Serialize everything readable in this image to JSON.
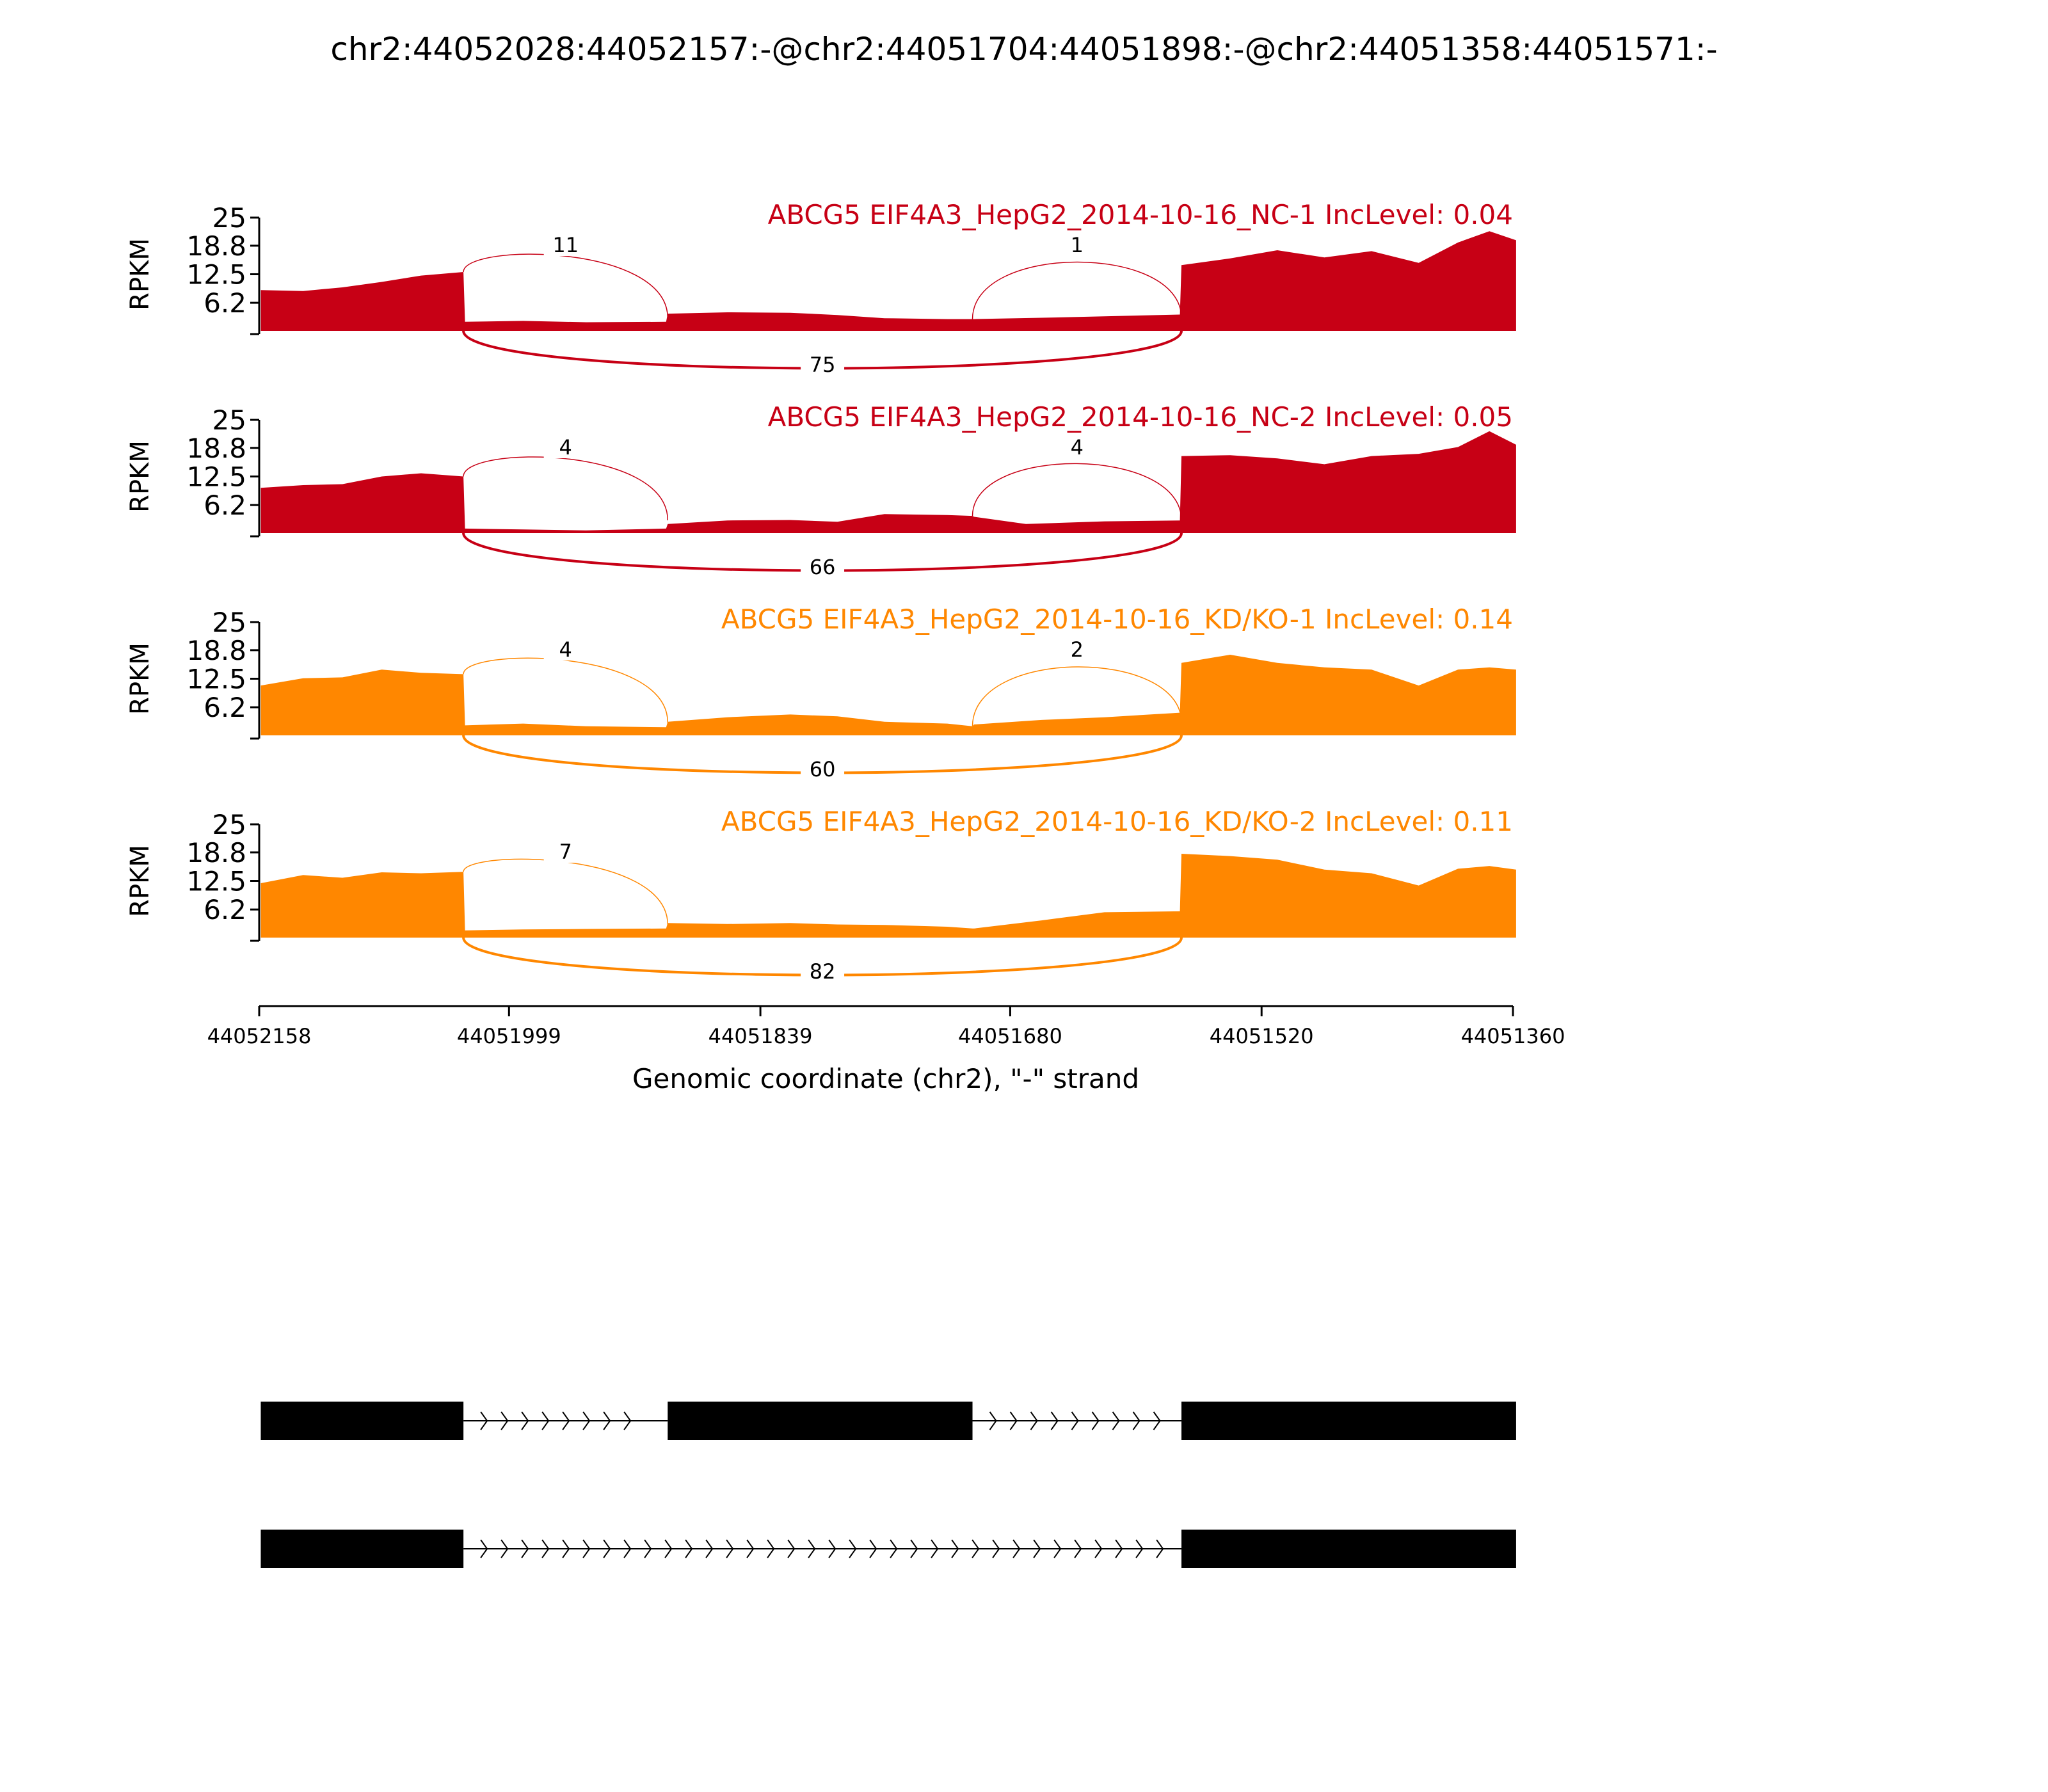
{
  "chart_data": {
    "type": "area",
    "title": "chr2:44052028:44052157:-@chr2:44051704:44051898:-@chr2:44051358:44051571:-",
    "xlabel": "Genomic coordinate (chr2), \"-\" strand",
    "ylabel": "RPKM",
    "xlim": [
      44052158,
      44051360
    ],
    "ylim": [
      0,
      25
    ],
    "x_ticks": [
      44052158,
      44051999,
      44051839,
      44051680,
      44051520,
      44051360
    ],
    "y_ticks": [
      6.2,
      12.5,
      18.8,
      25
    ],
    "exons": [
      {
        "start": 44052157,
        "end": 44052028
      },
      {
        "start": 44051898,
        "end": 44051704
      },
      {
        "start": 44051571,
        "end": 44051358
      }
    ],
    "series": [
      {
        "name": "ABCG5 EIF4A3_HepG2_2014-10-16_NC-1 IncLevel: 0.04",
        "color": "#c70015",
        "coverage": [
          [
            44052157,
            9.0
          ],
          [
            44052130,
            8.8
          ],
          [
            44052105,
            9.6
          ],
          [
            44052080,
            10.8
          ],
          [
            44052055,
            12.2
          ],
          [
            44052028,
            13.0
          ],
          [
            44052027,
            2.0
          ],
          [
            44051990,
            2.2
          ],
          [
            44051950,
            1.9
          ],
          [
            44051899,
            2.0
          ],
          [
            44051898,
            3.8
          ],
          [
            44051860,
            4.1
          ],
          [
            44051820,
            4.0
          ],
          [
            44051790,
            3.5
          ],
          [
            44051760,
            2.8
          ],
          [
            44051720,
            2.6
          ],
          [
            44051704,
            2.6
          ],
          [
            44051703,
            2.6
          ],
          [
            44051660,
            2.9
          ],
          [
            44051620,
            3.2
          ],
          [
            44051572,
            3.6
          ],
          [
            44051571,
            14.5
          ],
          [
            44051540,
            16.0
          ],
          [
            44051510,
            17.8
          ],
          [
            44051480,
            16.2
          ],
          [
            44051450,
            17.6
          ],
          [
            44051420,
            15.0
          ],
          [
            44051395,
            19.5
          ],
          [
            44051375,
            22.0
          ],
          [
            44051358,
            20.0
          ]
        ],
        "junctions": [
          {
            "from": 44052028,
            "to": 44051898,
            "count": 11,
            "side": "above"
          },
          {
            "from": 44051704,
            "to": 44051571,
            "count": 1,
            "side": "above"
          },
          {
            "from": 44052028,
            "to": 44051571,
            "count": 75,
            "side": "below"
          }
        ]
      },
      {
        "name": "ABCG5 EIF4A3_HepG2_2014-10-16_NC-2 IncLevel: 0.05",
        "color": "#c70015",
        "coverage": [
          [
            44052157,
            10.0
          ],
          [
            44052130,
            10.6
          ],
          [
            44052105,
            10.8
          ],
          [
            44052080,
            12.5
          ],
          [
            44052055,
            13.2
          ],
          [
            44052028,
            12.5
          ],
          [
            44052027,
            1.0
          ],
          [
            44051990,
            0.8
          ],
          [
            44051950,
            0.6
          ],
          [
            44051899,
            1.0
          ],
          [
            44051898,
            2.0
          ],
          [
            44051860,
            2.8
          ],
          [
            44051820,
            2.9
          ],
          [
            44051790,
            2.5
          ],
          [
            44051760,
            4.2
          ],
          [
            44051720,
            4.0
          ],
          [
            44051704,
            3.8
          ],
          [
            44051703,
            3.6
          ],
          [
            44051670,
            2.0
          ],
          [
            44051620,
            2.6
          ],
          [
            44051572,
            2.8
          ],
          [
            44051571,
            17.0
          ],
          [
            44051540,
            17.2
          ],
          [
            44051510,
            16.5
          ],
          [
            44051480,
            15.2
          ],
          [
            44051450,
            17.0
          ],
          [
            44051420,
            17.5
          ],
          [
            44051395,
            19.0
          ],
          [
            44051375,
            22.5
          ],
          [
            44051358,
            19.5
          ]
        ],
        "junctions": [
          {
            "from": 44052028,
            "to": 44051898,
            "count": 4,
            "side": "above"
          },
          {
            "from": 44051704,
            "to": 44051571,
            "count": 4,
            "side": "above"
          },
          {
            "from": 44052028,
            "to": 44051571,
            "count": 66,
            "side": "below"
          }
        ]
      },
      {
        "name": "ABCG5 EIF4A3_HepG2_2014-10-16_KD/KO-1 IncLevel: 0.14",
        "color": "#ff8700",
        "coverage": [
          [
            44052157,
            11.0
          ],
          [
            44052130,
            12.6
          ],
          [
            44052105,
            12.8
          ],
          [
            44052080,
            14.5
          ],
          [
            44052055,
            13.8
          ],
          [
            44052028,
            13.5
          ],
          [
            44052027,
            2.2
          ],
          [
            44051990,
            2.6
          ],
          [
            44051950,
            2.0
          ],
          [
            44051899,
            1.8
          ],
          [
            44051898,
            3.0
          ],
          [
            44051860,
            4.0
          ],
          [
            44051820,
            4.6
          ],
          [
            44051790,
            4.2
          ],
          [
            44051760,
            3.0
          ],
          [
            44051720,
            2.6
          ],
          [
            44051704,
            2.0
          ],
          [
            44051703,
            2.4
          ],
          [
            44051660,
            3.4
          ],
          [
            44051620,
            4.0
          ],
          [
            44051572,
            5.0
          ],
          [
            44051571,
            16.0
          ],
          [
            44051540,
            17.8
          ],
          [
            44051510,
            16.0
          ],
          [
            44051480,
            15.0
          ],
          [
            44051450,
            14.5
          ],
          [
            44051420,
            11.0
          ],
          [
            44051395,
            14.5
          ],
          [
            44051375,
            15.0
          ],
          [
            44051358,
            14.5
          ]
        ],
        "junctions": [
          {
            "from": 44052028,
            "to": 44051898,
            "count": 4,
            "side": "above"
          },
          {
            "from": 44051704,
            "to": 44051571,
            "count": 2,
            "side": "above"
          },
          {
            "from": 44052028,
            "to": 44051571,
            "count": 60,
            "side": "below"
          }
        ]
      },
      {
        "name": "ABCG5 EIF4A3_HepG2_2014-10-16_KD/KO-2 IncLevel: 0.11",
        "color": "#ff8700",
        "coverage": [
          [
            44052157,
            12.0
          ],
          [
            44052130,
            13.8
          ],
          [
            44052105,
            13.2
          ],
          [
            44052080,
            14.4
          ],
          [
            44052055,
            14.2
          ],
          [
            44052028,
            14.5
          ],
          [
            44052027,
            1.6
          ],
          [
            44051990,
            1.8
          ],
          [
            44051950,
            1.9
          ],
          [
            44051899,
            2.0
          ],
          [
            44051898,
            3.2
          ],
          [
            44051860,
            3.0
          ],
          [
            44051820,
            3.2
          ],
          [
            44051790,
            2.9
          ],
          [
            44051760,
            2.8
          ],
          [
            44051720,
            2.4
          ],
          [
            44051704,
            2.0
          ],
          [
            44051703,
            2.0
          ],
          [
            44051660,
            3.8
          ],
          [
            44051620,
            5.6
          ],
          [
            44051572,
            5.8
          ],
          [
            44051571,
            18.5
          ],
          [
            44051540,
            18.0
          ],
          [
            44051510,
            17.2
          ],
          [
            44051480,
            15.0
          ],
          [
            44051450,
            14.2
          ],
          [
            44051420,
            11.5
          ],
          [
            44051395,
            15.2
          ],
          [
            44051375,
            15.8
          ],
          [
            44051358,
            15.0
          ]
        ],
        "junctions": [
          {
            "from": 44052028,
            "to": 44051898,
            "count": 7,
            "side": "above"
          },
          {
            "from": 44052028,
            "to": 44051571,
            "count": 82,
            "side": "below"
          }
        ]
      }
    ],
    "isoforms": [
      {
        "exons": [
          [
            44052157,
            44052028
          ],
          [
            44051898,
            44051704
          ],
          [
            44051571,
            44051358
          ]
        ]
      },
      {
        "exons": [
          [
            44052157,
            44052028
          ],
          [
            44051571,
            44051358
          ]
        ]
      }
    ]
  }
}
